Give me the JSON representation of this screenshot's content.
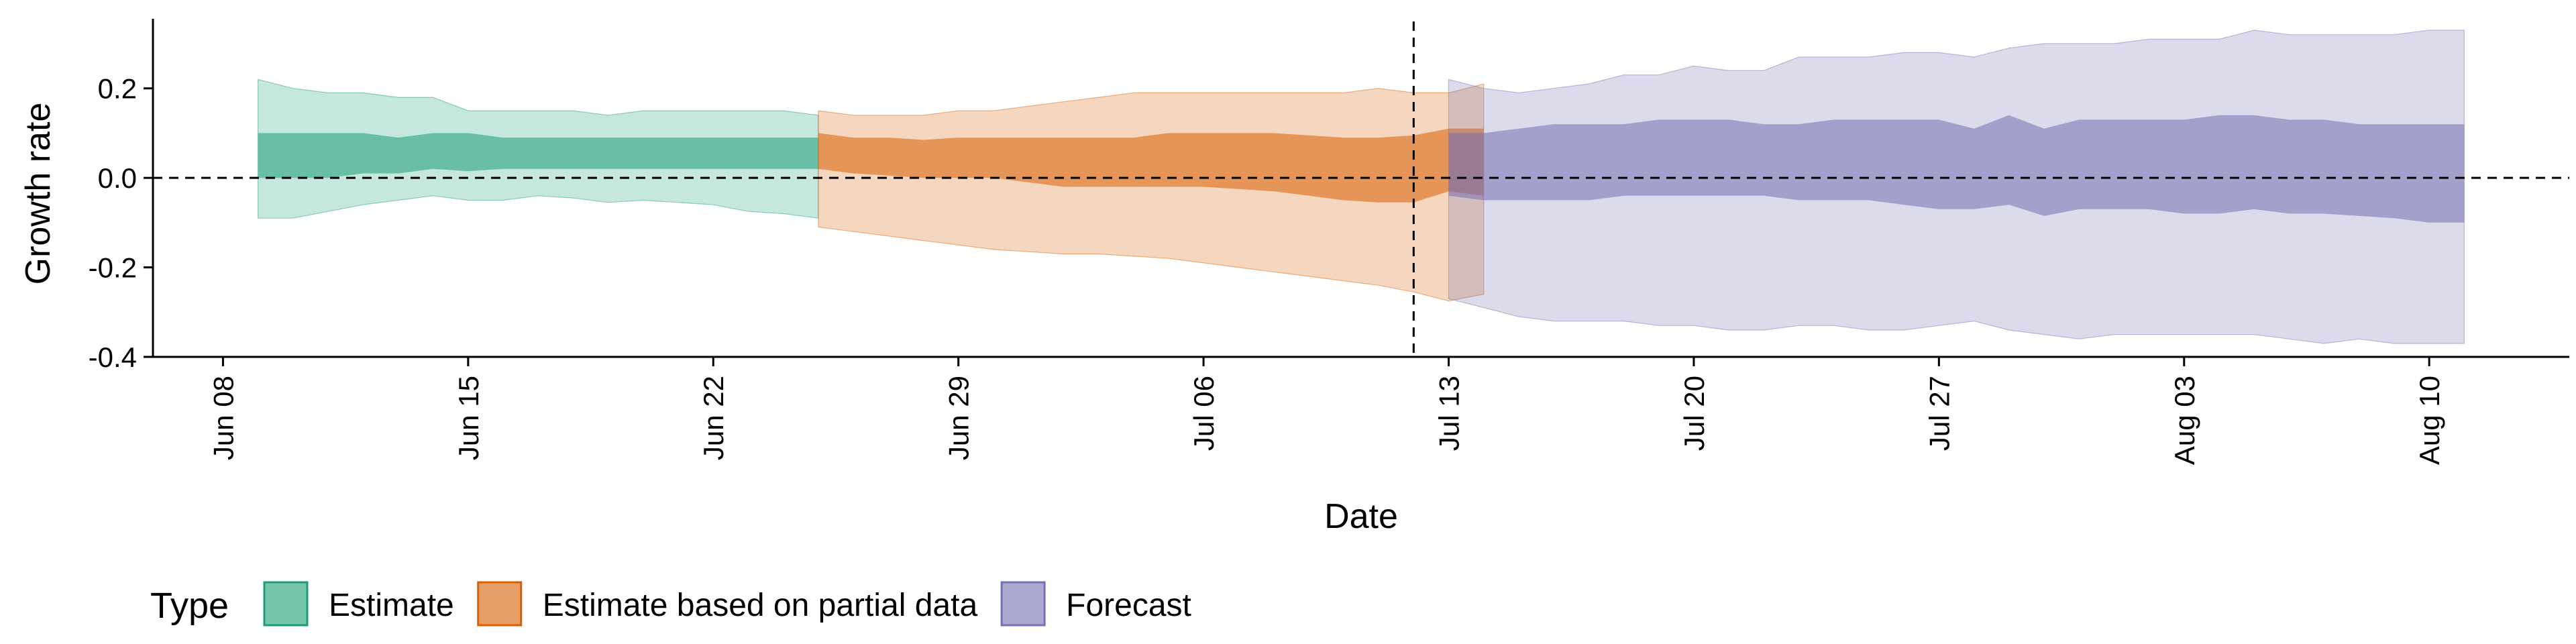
{
  "chart_data": {
    "type": "area",
    "xlabel": "Date",
    "ylabel": "Growth rate",
    "ylim": [
      -0.4,
      0.36
    ],
    "xlim": [
      "2020-06-06",
      "2020-08-14"
    ],
    "y_ticks": [
      {
        "value": -0.4,
        "label": "-0.4"
      },
      {
        "value": -0.2,
        "label": "-0.2"
      },
      {
        "value": 0.0,
        "label": "0.0"
      },
      {
        "value": 0.2,
        "label": "0.2"
      }
    ],
    "x_ticks": [
      {
        "date": "2020-06-08",
        "label": "Jun 08"
      },
      {
        "date": "2020-06-15",
        "label": "Jun 15"
      },
      {
        "date": "2020-06-22",
        "label": "Jun 22"
      },
      {
        "date": "2020-06-29",
        "label": "Jun 29"
      },
      {
        "date": "2020-07-06",
        "label": "Jul 06"
      },
      {
        "date": "2020-07-13",
        "label": "Jul 13"
      },
      {
        "date": "2020-07-20",
        "label": "Jul 20"
      },
      {
        "date": "2020-07-27",
        "label": "Jul 27"
      },
      {
        "date": "2020-08-03",
        "label": "Aug 03"
      },
      {
        "date": "2020-08-10",
        "label": "Aug 10"
      }
    ],
    "reference_lines": {
      "horizontal_y": 0.0,
      "vertical_date": "2020-07-12"
    },
    "legend": {
      "title": "Type",
      "position": "bottom-left"
    },
    "series": [
      {
        "name": "Estimate",
        "color": "#1B9E77",
        "start_date": "2020-06-09",
        "lower90": [
          -0.09,
          -0.09,
          -0.075,
          -0.06,
          -0.05,
          -0.04,
          -0.05,
          -0.05,
          -0.04,
          -0.045,
          -0.055,
          -0.05,
          -0.055,
          -0.06,
          -0.075,
          -0.08,
          -0.09
        ],
        "lower50": [
          0.0,
          0.0,
          0.0,
          0.01,
          0.01,
          0.02,
          0.015,
          0.02,
          0.02,
          0.02,
          0.02,
          0.02,
          0.02,
          0.02,
          0.02,
          0.02,
          0.02
        ],
        "upper50": [
          0.1,
          0.1,
          0.1,
          0.1,
          0.09,
          0.1,
          0.1,
          0.09,
          0.09,
          0.09,
          0.09,
          0.09,
          0.09,
          0.09,
          0.09,
          0.09,
          0.09
        ],
        "upper90": [
          0.22,
          0.2,
          0.19,
          0.19,
          0.18,
          0.18,
          0.15,
          0.15,
          0.15,
          0.15,
          0.14,
          0.15,
          0.15,
          0.15,
          0.15,
          0.15,
          0.14
        ]
      },
      {
        "name": "Estimate based on partial data",
        "color": "#D95F02",
        "start_date": "2020-06-25",
        "lower90": [
          -0.11,
          -0.12,
          -0.13,
          -0.14,
          -0.15,
          -0.16,
          -0.165,
          -0.17,
          -0.17,
          -0.175,
          -0.18,
          -0.19,
          -0.2,
          -0.21,
          -0.22,
          -0.23,
          -0.24,
          -0.255,
          -0.275,
          -0.26
        ],
        "lower50": [
          0.02,
          0.01,
          0.005,
          0.0,
          0.0,
          0.0,
          -0.01,
          -0.02,
          -0.02,
          -0.02,
          -0.02,
          -0.02,
          -0.025,
          -0.03,
          -0.04,
          -0.05,
          -0.055,
          -0.055,
          -0.03,
          -0.04
        ],
        "upper50": [
          0.1,
          0.09,
          0.09,
          0.085,
          0.09,
          0.09,
          0.09,
          0.09,
          0.09,
          0.09,
          0.1,
          0.1,
          0.1,
          0.1,
          0.095,
          0.09,
          0.09,
          0.095,
          0.11,
          0.11
        ],
        "upper90": [
          0.15,
          0.14,
          0.14,
          0.14,
          0.15,
          0.15,
          0.16,
          0.17,
          0.18,
          0.19,
          0.19,
          0.19,
          0.19,
          0.19,
          0.19,
          0.19,
          0.2,
          0.19,
          0.19,
          0.21
        ]
      },
      {
        "name": "Forecast",
        "color": "#7570B3",
        "start_date": "2020-07-13",
        "lower90": [
          -0.27,
          -0.29,
          -0.31,
          -0.32,
          -0.32,
          -0.32,
          -0.33,
          -0.33,
          -0.34,
          -0.34,
          -0.33,
          -0.33,
          -0.34,
          -0.34,
          -0.33,
          -0.32,
          -0.34,
          -0.35,
          -0.36,
          -0.35,
          -0.35,
          -0.35,
          -0.35,
          -0.35,
          -0.36,
          -0.37,
          -0.36,
          -0.37,
          -0.37,
          -0.37
        ],
        "lower50": [
          -0.04,
          -0.05,
          -0.05,
          -0.05,
          -0.05,
          -0.04,
          -0.04,
          -0.04,
          -0.04,
          -0.04,
          -0.05,
          -0.05,
          -0.05,
          -0.06,
          -0.07,
          -0.07,
          -0.06,
          -0.085,
          -0.07,
          -0.07,
          -0.07,
          -0.08,
          -0.08,
          -0.07,
          -0.08,
          -0.08,
          -0.085,
          -0.09,
          -0.1,
          -0.1
        ],
        "upper50": [
          0.1,
          0.1,
          0.11,
          0.12,
          0.12,
          0.12,
          0.13,
          0.13,
          0.13,
          0.12,
          0.12,
          0.13,
          0.13,
          0.13,
          0.13,
          0.11,
          0.14,
          0.11,
          0.13,
          0.13,
          0.13,
          0.13,
          0.14,
          0.14,
          0.13,
          0.13,
          0.12,
          0.12,
          0.12,
          0.12
        ],
        "upper90": [
          0.22,
          0.2,
          0.19,
          0.2,
          0.21,
          0.23,
          0.23,
          0.25,
          0.24,
          0.24,
          0.27,
          0.27,
          0.27,
          0.28,
          0.28,
          0.27,
          0.29,
          0.3,
          0.3,
          0.3,
          0.31,
          0.31,
          0.31,
          0.33,
          0.32,
          0.32,
          0.32,
          0.32,
          0.33,
          0.33
        ]
      }
    ]
  }
}
